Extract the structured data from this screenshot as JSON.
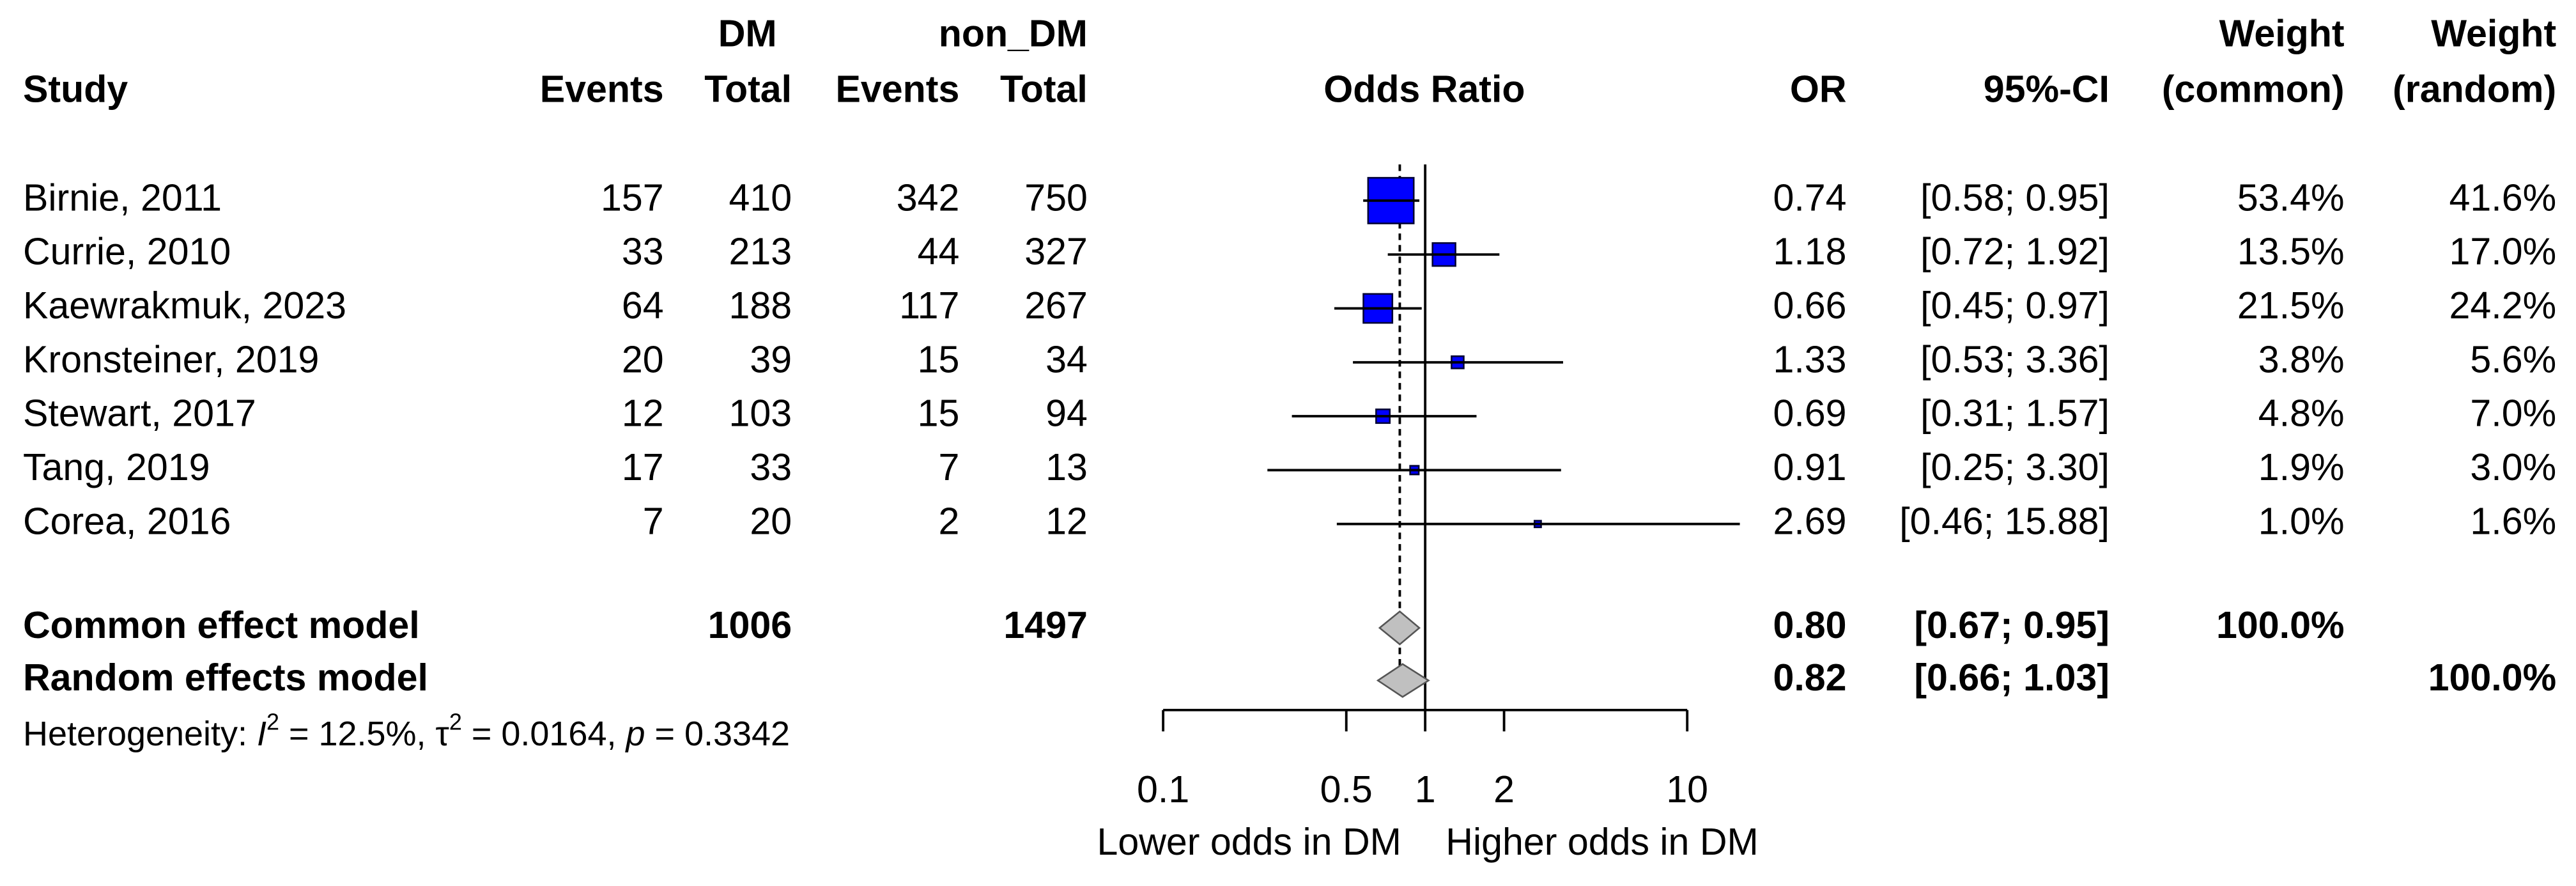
{
  "chart_data": {
    "type": "forest",
    "headers": {
      "study": "Study",
      "dm": "DM",
      "non_dm": "non_DM",
      "events": "Events",
      "total": "Total",
      "odds_ratio": "Odds Ratio",
      "or": "OR",
      "ci": "95%-CI",
      "weight": "Weight",
      "common": "(common)",
      "random": "(random)"
    },
    "studies": {
      "names": [
        "Birnie, 2011",
        "Currie, 2010",
        "Kaewrakmuk, 2023",
        "Kronsteiner, 2019",
        "Stewart, 2017",
        "Tang, 2019",
        "Corea, 2016"
      ],
      "dm_events": [
        157,
        33,
        64,
        20,
        12,
        17,
        7
      ],
      "dm_total": [
        410,
        213,
        188,
        39,
        103,
        33,
        20
      ],
      "non_dm_events": [
        342,
        44,
        117,
        15,
        15,
        7,
        2
      ],
      "non_dm_total": [
        750,
        327,
        267,
        34,
        94,
        13,
        12
      ],
      "or": [
        0.74,
        1.18,
        0.66,
        1.33,
        0.69,
        0.91,
        2.69
      ],
      "or_labels": [
        "0.74",
        "1.18",
        "0.66",
        "1.33",
        "0.69",
        "0.91",
        "2.69"
      ],
      "ci_lower": [
        0.58,
        0.72,
        0.45,
        0.53,
        0.31,
        0.25,
        0.46
      ],
      "ci_upper": [
        0.95,
        1.92,
        0.97,
        3.36,
        1.57,
        3.3,
        15.88
      ],
      "ci_labels": [
        "[0.58; 0.95]",
        "[0.72; 1.92]",
        "[0.45; 0.97]",
        "[0.53; 3.36]",
        "[0.31; 1.57]",
        "[0.25; 3.30]",
        "[0.46; 15.88]"
      ],
      "weight_common": [
        53.4,
        13.5,
        21.5,
        3.8,
        4.8,
        1.9,
        1.0
      ],
      "weight_common_labels": [
        "53.4%",
        "13.5%",
        "21.5%",
        "3.8%",
        "4.8%",
        "1.9%",
        "1.0%"
      ],
      "weight_random": [
        41.6,
        17.0,
        24.2,
        5.6,
        7.0,
        3.0,
        1.6
      ],
      "weight_random_labels": [
        "41.6%",
        "17.0%",
        "24.2%",
        "5.6%",
        "7.0%",
        "3.0%",
        "1.6%"
      ],
      "color": "#0000ff"
    },
    "pooled": [
      {
        "name": "Common effect model",
        "dm_total": 1006,
        "non_dm_total": 1497,
        "or": 0.8,
        "or_label": "0.80",
        "ci_lower": 0.67,
        "ci_upper": 0.95,
        "ci_label": "[0.67; 0.95]",
        "weight": 100,
        "weight_label": "100.0%",
        "weight_column": "common"
      },
      {
        "name": "Random effects model",
        "or": 0.82,
        "or_label": "0.82",
        "ci_lower": 0.66,
        "ci_upper": 1.03,
        "ci_label": "[0.66; 1.03]",
        "weight": 100,
        "weight_label": "100.0%",
        "weight_column": "random"
      }
    ],
    "pooled_color": "#c0c0c0",
    "heterogeneity": {
      "prefix": "Heterogeneity: ",
      "i2_symbol": "I",
      "superscript": "2",
      "i2_label": " = 12.5%, ",
      "tau2_symbol": "τ",
      "tau2_label": " = 0.0164, ",
      "p_symbol": "p",
      "p_label": " = 0.3342"
    },
    "log_x": true,
    "xlim": [
      0.1,
      10
    ],
    "xticks": [
      0.1,
      0.5,
      1,
      2,
      10
    ],
    "null_line": 1,
    "x_labels": [
      "Lower odds in DM",
      "Higher odds in DM"
    ]
  }
}
